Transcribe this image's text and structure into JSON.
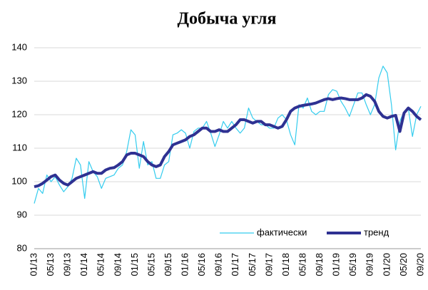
{
  "chart_data": {
    "type": "line",
    "title": "Добыча угля",
    "categories": [
      "01/13",
      null,
      null,
      null,
      "05/13",
      null,
      null,
      null,
      "09/13",
      null,
      null,
      null,
      "01/14",
      null,
      null,
      null,
      "05/14",
      null,
      null,
      null,
      "09/14",
      null,
      null,
      null,
      "01/15",
      null,
      null,
      null,
      "05/15",
      null,
      null,
      null,
      "09/15",
      null,
      null,
      null,
      "01/16",
      null,
      null,
      null,
      "05/16",
      null,
      null,
      null,
      "09/16",
      null,
      null,
      null,
      "01/17",
      null,
      null,
      null,
      "05/17",
      null,
      null,
      null,
      "09/17",
      null,
      null,
      null,
      "01/18",
      null,
      null,
      null,
      "05/18",
      null,
      null,
      null,
      "09/18",
      null,
      null,
      null,
      "01/19",
      null,
      null,
      null,
      "05/19",
      null,
      null,
      null,
      "09/19",
      null,
      null,
      null,
      "01/20",
      null,
      null,
      null,
      "05/20",
      null,
      null,
      null,
      "09/20"
    ],
    "series": [
      {
        "name": "фактически",
        "color": "#33ccee",
        "values": [
          93.5,
          98,
          96.5,
          102,
          100,
          101.5,
          99,
          97,
          98.5,
          101,
          107,
          105,
          95,
          106,
          103,
          101.5,
          98,
          101,
          101.5,
          102,
          104,
          105,
          109,
          115.5,
          114,
          104,
          112,
          105,
          106,
          101,
          101,
          105,
          106,
          114,
          114.5,
          115.5,
          114.5,
          110,
          115,
          116,
          116,
          118,
          114.5,
          110.5,
          114,
          118,
          116,
          118,
          116,
          114.5,
          116,
          122,
          119,
          118,
          117,
          117,
          116,
          116,
          119,
          120,
          118.5,
          114,
          111,
          123,
          122,
          125,
          121,
          120,
          121,
          121,
          126,
          127.5,
          127,
          124,
          122,
          119.5,
          123,
          126.5,
          126.5,
          123,
          120,
          123,
          131,
          134.5,
          132.5,
          123,
          109.5,
          118,
          121,
          122,
          113.5,
          120,
          122.5
        ]
      },
      {
        "name": "тренд",
        "color": "#2e3192",
        "values": [
          98.5,
          98.8,
          99.5,
          100.5,
          101.5,
          102,
          100.5,
          99.5,
          99,
          100,
          101,
          101.5,
          102,
          102.5,
          103,
          102.5,
          102.5,
          103.5,
          104,
          104.2,
          105,
          106,
          108,
          108.5,
          108.5,
          108,
          107.5,
          106,
          105,
          104.5,
          105,
          107.5,
          109,
          111,
          111.5,
          112,
          112.5,
          113.5,
          114,
          115,
          116,
          116,
          115,
          115,
          115.5,
          115,
          115,
          116,
          117,
          118.5,
          118.5,
          118,
          117.5,
          118,
          118,
          117,
          117,
          116.5,
          116,
          116.5,
          118.5,
          121,
          122,
          122.5,
          122.8,
          123,
          123.2,
          123.5,
          124,
          124.5,
          124.8,
          124.5,
          124.8,
          125,
          124.8,
          124.5,
          124.5,
          124.5,
          125,
          126,
          125.5,
          124,
          121,
          119.5,
          119,
          119.5,
          119.8,
          115,
          120.5,
          122,
          121,
          119.5,
          118.5
        ]
      }
    ],
    "ylim": [
      80,
      140
    ],
    "yticks": [
      80,
      90,
      100,
      110,
      120,
      130,
      140
    ],
    "grid": true,
    "legend": "lower right"
  }
}
